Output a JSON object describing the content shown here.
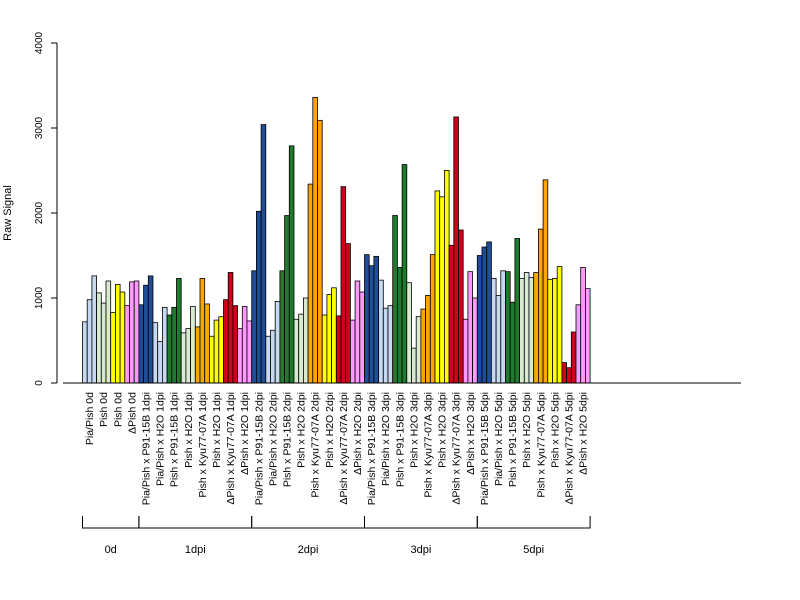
{
  "chart_data": {
    "type": "bar",
    "title": "",
    "xlabel": "",
    "ylabel": "Raw Signal",
    "ylim": [
      0,
      4000
    ],
    "yticks": [
      0,
      1000,
      2000,
      3000,
      4000
    ],
    "grid": false,
    "legend": "none",
    "categories": [
      "Pia/Pish 0d",
      "Pish 0d",
      "Pish 0d",
      "ΔPish 0d",
      "Pia/Pish x P91-15B 1dpi",
      "Pia/Pish x H2O 1dpi",
      "Pish x P91-15B 1dpi",
      "Pish x H2O 1dpi",
      "Pish x Kyu77-07A 1dpi",
      "Pish x H2O 1dpi",
      "ΔPish x Kyu77-07A 1dpi",
      "ΔPish x H2O 1dpi",
      "Pia/Pish x P91-15B 2dpi",
      "Pia/Pish x H2O 2dpi",
      "Pish x P91-15B 2dpi",
      "Pish x H2O 2dpi",
      "Pish x Kyu77-07A 2dpi",
      "Pish x H2O 2dpi",
      "ΔPish x Kyu77-07A 2dpi",
      "ΔPish x H2O 2dpi",
      "Pia/Pish x P91-15B 3dpi",
      "Pia/Pish x H2O 3dpi",
      "Pish x P91-15B 3dpi",
      "Pish x H2O 3dpi",
      "Pish x Kyu77-07A 3dpi",
      "Pish x H2O 3dpi",
      "ΔPish x Kyu77-07A 3dpi",
      "ΔPish x H2O 3dpi",
      "Pia/Pish x P91-15B 5dpi",
      "Pia/Pish x H2O 5dpi",
      "Pish x P91-15B 5dpi",
      "Pish x H2O 5dpi",
      "Pish x Kyu77-07A 5dpi",
      "Pish x H2O 5dpi",
      "ΔPish x Kyu77-07A 5dpi",
      "ΔPish x H2O 5dpi"
    ],
    "bar_colors": [
      "#C6D9F1",
      "#D8EBD0",
      "#FFFF00",
      "#FF99FF",
      "#1F4E99",
      "#C6D9F1",
      "#1F7A2E",
      "#D8EBD0",
      "#FFA500",
      "#FFFF00",
      "#D0021B",
      "#FF99FF",
      "#1F4E99",
      "#C6D9F1",
      "#1F7A2E",
      "#D8EBD0",
      "#FFA500",
      "#FFFF00",
      "#D0021B",
      "#FF99FF",
      "#1F4E99",
      "#C6D9F1",
      "#1F7A2E",
      "#D8EBD0",
      "#FFA500",
      "#FFFF00",
      "#D0021B",
      "#FF99FF",
      "#1F4E99",
      "#C6D9F1",
      "#1F7A2E",
      "#D8EBD0",
      "#FFA500",
      "#FFFF00",
      "#D0021B",
      "#FF99FF"
    ],
    "values": [
      [
        720,
        980,
        1260
      ],
      [
        1060,
        940,
        1200
      ],
      [
        830,
        1160,
        1070
      ],
      [
        910,
        1190,
        1200
      ],
      [
        920,
        1150,
        1260
      ],
      [
        710,
        490,
        890
      ],
      [
        800,
        890,
        1230
      ],
      [
        590,
        640,
        900
      ],
      [
        660,
        1230,
        930
      ],
      [
        550,
        740,
        780
      ],
      [
        980,
        1300,
        910
      ],
      [
        640,
        900,
        730
      ],
      [
        1320,
        2020,
        3040
      ],
      [
        550,
        620,
        960
      ],
      [
        1320,
        1970,
        2790
      ],
      [
        750,
        810,
        1000
      ],
      [
        2340,
        3360,
        3090
      ],
      [
        800,
        1040,
        1120
      ],
      [
        790,
        2310,
        1640
      ],
      [
        740,
        1200,
        1070
      ],
      [
        1510,
        1380,
        1490
      ],
      [
        1210,
        880,
        910
      ],
      [
        1970,
        1360,
        2570
      ],
      [
        1180,
        410,
        780
      ],
      [
        870,
        1030,
        1510
      ],
      [
        2260,
        2190,
        2500
      ],
      [
        1620,
        3130,
        1800
      ],
      [
        750,
        1310,
        1000
      ],
      [
        1500,
        1600,
        1660
      ],
      [
        1230,
        1030,
        1320
      ],
      [
        1310,
        950,
        1700
      ],
      [
        1230,
        1300,
        1240
      ],
      [
        1300,
        1810,
        2390
      ],
      [
        1220,
        1230,
        1370
      ],
      [
        240,
        180,
        600
      ],
      [
        920,
        1360,
        1110
      ]
    ],
    "groups": [
      {
        "label": "0d",
        "start": 0,
        "end": 3
      },
      {
        "label": "1dpi",
        "start": 4,
        "end": 11
      },
      {
        "label": "2dpi",
        "start": 12,
        "end": 19
      },
      {
        "label": "3dpi",
        "start": 20,
        "end": 27
      },
      {
        "label": "5dpi",
        "start": 28,
        "end": 35
      }
    ]
  }
}
